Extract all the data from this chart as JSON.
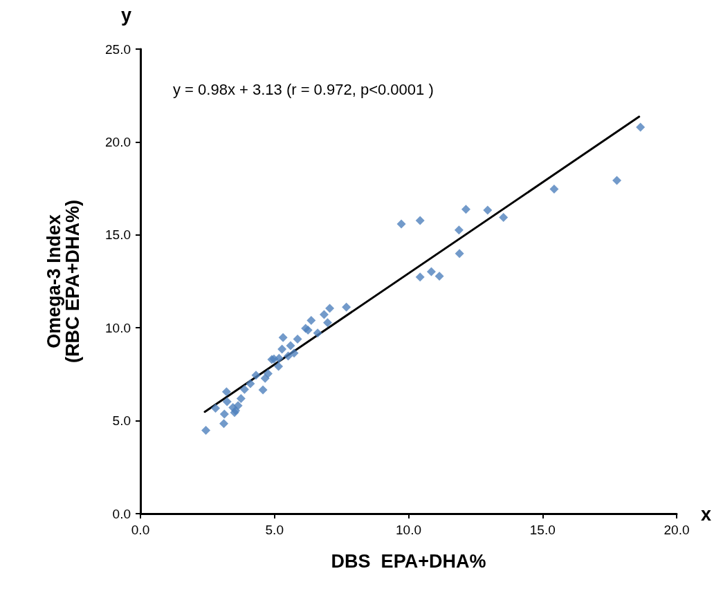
{
  "chart_data": {
    "type": "scatter",
    "xlabel": "DBS  EPA+DHA%",
    "ylabel": "Omega-3 Index\n(RBC EPA+DHA%)",
    "annotations": [
      "y = 0.98x + 3.13 (r = 0.972, p<0.0001 )",
      "x",
      "y"
    ],
    "xlim": [
      0,
      20
    ],
    "ylim": [
      0,
      25
    ],
    "xticks": [
      {
        "value": 0,
        "label": "0.0"
      },
      {
        "value": 5,
        "label": "5.0"
      },
      {
        "value": 10,
        "label": "10.0"
      },
      {
        "value": 15,
        "label": "15.0"
      },
      {
        "value": 20,
        "label": "20.0"
      }
    ],
    "yticks": [
      {
        "value": 0,
        "label": "0.0"
      },
      {
        "value": 5,
        "label": "5.0"
      },
      {
        "value": 10,
        "label": "10.0"
      },
      {
        "value": 15,
        "label": "15.0"
      },
      {
        "value": 20,
        "label": "20.0"
      },
      {
        "value": 25,
        "label": "25.0"
      }
    ],
    "grid": false,
    "marker": "diamond",
    "series": [
      {
        "color": "#4f81bd",
        "x": [
          2.44,
          2.8,
          3.11,
          3.13,
          3.21,
          3.23,
          3.45,
          3.51,
          3.55,
          3.64,
          3.75,
          3.88,
          4.1,
          4.31,
          4.57,
          4.65,
          4.76,
          4.9,
          4.98,
          5.15,
          5.17,
          5.32,
          5.28,
          5.51,
          5.6,
          5.73,
          5.86,
          6.16,
          6.25,
          6.37,
          6.61,
          6.85,
          6.98,
          7.06,
          7.68,
          9.73,
          10.43,
          10.43,
          10.85,
          11.15,
          11.88,
          11.9,
          12.14,
          12.95,
          13.54,
          15.43,
          17.77,
          18.65
        ],
        "values": [
          4.48,
          5.67,
          4.85,
          5.36,
          6.56,
          6.03,
          5.71,
          5.44,
          5.54,
          5.81,
          6.19,
          6.69,
          6.99,
          7.45,
          6.66,
          7.28,
          7.53,
          8.3,
          8.32,
          7.92,
          8.36,
          9.48,
          8.85,
          8.48,
          9.04,
          8.64,
          9.39,
          9.97,
          9.88,
          10.4,
          9.72,
          10.71,
          10.28,
          11.05,
          11.11,
          15.59,
          15.77,
          12.73,
          13.02,
          12.78,
          15.26,
          14.0,
          16.38,
          16.33,
          15.94,
          17.47,
          17.93,
          20.8
        ]
      },
      {
        "type": "line",
        "color": "#000000",
        "marker": "none",
        "line_style": "solid",
        "x": [
          2.4,
          18.6
        ],
        "values": [
          5.48,
          21.36
        ]
      }
    ]
  }
}
